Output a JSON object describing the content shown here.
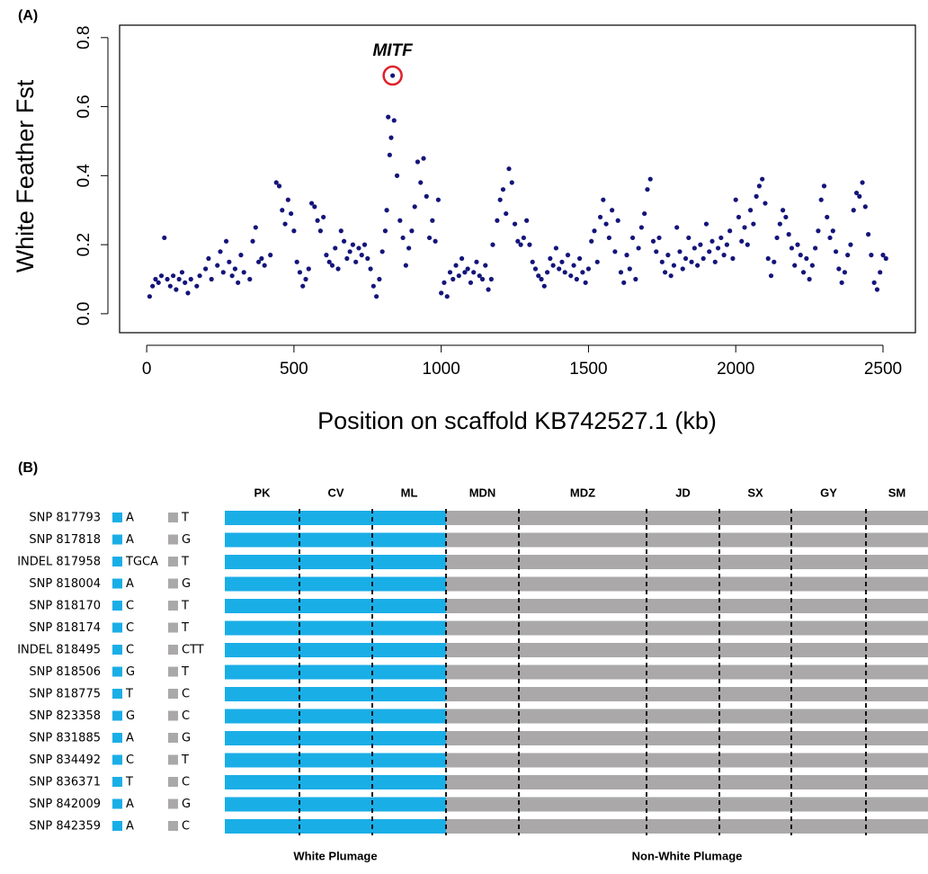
{
  "chart_data": {
    "type": "scatter",
    "panel_label": "(A)",
    "ylabel": "White Feather Fst",
    "xlabel": "Position on scaffold KB742527.1 (kb)",
    "color": "#14147a",
    "annotation": {
      "text": "MITF",
      "x": 835,
      "y": 0.69,
      "color": "#e0202a"
    },
    "xlim": [
      -92,
      2610
    ],
    "ylim": [
      -0.055,
      0.836
    ],
    "xticks": [
      0,
      500,
      1000,
      1500,
      2000,
      2500
    ],
    "yticks": [
      {
        "value": 0,
        "label": "0.0"
      },
      0.2,
      0.4,
      0.6,
      0.8
    ],
    "x": [
      10,
      20,
      30,
      40,
      50,
      60,
      70,
      80,
      90,
      100,
      110,
      120,
      130,
      140,
      150,
      170,
      180,
      200,
      210,
      220,
      240,
      250,
      260,
      270,
      280,
      290,
      300,
      310,
      320,
      330,
      350,
      360,
      370,
      380,
      390,
      400,
      420,
      440,
      450,
      460,
      470,
      480,
      490,
      500,
      510,
      520,
      530,
      540,
      550,
      560,
      570,
      580,
      590,
      600,
      610,
      620,
      630,
      640,
      650,
      660,
      670,
      680,
      690,
      700,
      710,
      720,
      730,
      740,
      750,
      760,
      770,
      780,
      790,
      800,
      810,
      815,
      820,
      825,
      830,
      835,
      840,
      850,
      860,
      870,
      880,
      890,
      900,
      910,
      920,
      930,
      940,
      950,
      960,
      970,
      980,
      990,
      1000,
      1010,
      1020,
      1030,
      1040,
      1050,
      1060,
      1070,
      1080,
      1090,
      1100,
      1110,
      1120,
      1130,
      1140,
      1150,
      1160,
      1170,
      1175,
      1190,
      1200,
      1210,
      1220,
      1230,
      1240,
      1250,
      1260,
      1270,
      1280,
      1290,
      1300,
      1310,
      1320,
      1330,
      1340,
      1350,
      1360,
      1370,
      1380,
      1390,
      1400,
      1410,
      1420,
      1430,
      1440,
      1450,
      1460,
      1470,
      1480,
      1490,
      1500,
      1510,
      1520,
      1530,
      1540,
      1550,
      1560,
      1570,
      1580,
      1590,
      1600,
      1610,
      1620,
      1630,
      1640,
      1650,
      1660,
      1670,
      1680,
      1690,
      1700,
      1710,
      1720,
      1730,
      1740,
      1750,
      1760,
      1770,
      1780,
      1790,
      1800,
      1810,
      1820,
      1830,
      1840,
      1850,
      1860,
      1870,
      1880,
      1890,
      1900,
      1910,
      1920,
      1930,
      1940,
      1950,
      1960,
      1970,
      1980,
      1990,
      2000,
      2010,
      2020,
      2030,
      2040,
      2050,
      2060,
      2070,
      2080,
      2090,
      2100,
      2110,
      2120,
      2130,
      2140,
      2150,
      2160,
      2170,
      2180,
      2190,
      2200,
      2210,
      2220,
      2230,
      2240,
      2250,
      2260,
      2270,
      2280,
      2290,
      2300,
      2310,
      2320,
      2330,
      2340,
      2350,
      2360,
      2370,
      2380,
      2390,
      2400,
      2410,
      2420,
      2430,
      2440,
      2450,
      2460,
      2470,
      2480,
      2490,
      2500,
      2510
    ],
    "y": [
      0.05,
      0.08,
      0.1,
      0.09,
      0.11,
      0.22,
      0.1,
      0.08,
      0.11,
      0.07,
      0.1,
      0.12,
      0.09,
      0.06,
      0.1,
      0.08,
      0.11,
      0.13,
      0.16,
      0.1,
      0.14,
      0.18,
      0.12,
      0.21,
      0.15,
      0.11,
      0.13,
      0.09,
      0.17,
      0.12,
      0.1,
      0.21,
      0.25,
      0.15,
      0.16,
      0.14,
      0.17,
      0.38,
      0.37,
      0.3,
      0.26,
      0.33,
      0.29,
      0.24,
      0.15,
      0.12,
      0.08,
      0.1,
      0.13,
      0.32,
      0.31,
      0.27,
      0.24,
      0.28,
      0.17,
      0.15,
      0.14,
      0.19,
      0.13,
      0.24,
      0.21,
      0.16,
      0.18,
      0.2,
      0.15,
      0.19,
      0.17,
      0.2,
      0.16,
      0.13,
      0.08,
      0.05,
      0.1,
      0.18,
      0.24,
      0.3,
      0.57,
      0.46,
      0.51,
      0.69,
      0.56,
      0.4,
      0.27,
      0.22,
      0.14,
      0.19,
      0.24,
      0.31,
      0.44,
      0.38,
      0.45,
      0.34,
      0.22,
      0.27,
      0.21,
      0.33,
      0.06,
      0.09,
      0.05,
      0.12,
      0.1,
      0.14,
      0.11,
      0.16,
      0.12,
      0.13,
      0.09,
      0.12,
      0.15,
      0.11,
      0.1,
      0.14,
      0.07,
      0.1,
      0.2,
      0.27,
      0.33,
      0.36,
      0.29,
      0.42,
      0.38,
      0.26,
      0.21,
      0.2,
      0.22,
      0.27,
      0.2,
      0.15,
      0.13,
      0.11,
      0.1,
      0.08,
      0.12,
      0.16,
      0.14,
      0.19,
      0.13,
      0.15,
      0.12,
      0.17,
      0.11,
      0.14,
      0.1,
      0.16,
      0.12,
      0.09,
      0.13,
      0.21,
      0.24,
      0.15,
      0.28,
      0.33,
      0.26,
      0.22,
      0.3,
      0.18,
      0.27,
      0.12,
      0.09,
      0.17,
      0.13,
      0.22,
      0.1,
      0.19,
      0.25,
      0.29,
      0.36,
      0.39,
      0.21,
      0.18,
      0.22,
      0.15,
      0.12,
      0.17,
      0.11,
      0.14,
      0.25,
      0.18,
      0.13,
      0.16,
      0.22,
      0.15,
      0.19,
      0.14,
      0.2,
      0.16,
      0.26,
      0.18,
      0.21,
      0.15,
      0.19,
      0.22,
      0.17,
      0.2,
      0.24,
      0.16,
      0.33,
      0.28,
      0.21,
      0.25,
      0.2,
      0.3,
      0.26,
      0.34,
      0.37,
      0.39,
      0.32,
      0.16,
      0.11,
      0.15,
      0.22,
      0.26,
      0.3,
      0.28,
      0.23,
      0.19,
      0.14,
      0.2,
      0.17,
      0.12,
      0.16,
      0.1,
      0.14,
      0.19,
      0.24,
      0.33,
      0.37,
      0.28,
      0.22,
      0.24,
      0.18,
      0.13,
      0.09,
      0.12,
      0.17,
      0.2,
      0.3,
      0.35,
      0.34,
      0.38,
      0.31,
      0.23,
      0.17,
      0.09,
      0.07,
      0.12,
      0.17,
      0.16
    ]
  },
  "panel_b": {
    "label": "(B)",
    "groups": [
      {
        "name": "White Plumage",
        "color": "#1aaee6",
        "columns": [
          "PK",
          "CV",
          "ML"
        ]
      },
      {
        "name": "Non-White Plumage",
        "color": "#aaa8a8",
        "columns": [
          "MDN",
          "MDZ",
          "JD",
          "SX",
          "GY",
          "SM"
        ]
      }
    ],
    "rows": [
      {
        "name": "SNP 817793",
        "allele_a": "A",
        "allele_b": "T"
      },
      {
        "name": "SNP 817818",
        "allele_a": "A",
        "allele_b": "G"
      },
      {
        "name": "INDEL 817958",
        "allele_a": "TGCA",
        "allele_b": "T"
      },
      {
        "name": "SNP 818004",
        "allele_a": "A",
        "allele_b": "G"
      },
      {
        "name": "SNP 818170",
        "allele_a": "C",
        "allele_b": "T"
      },
      {
        "name": "SNP 818174",
        "allele_a": "C",
        "allele_b": "T"
      },
      {
        "name": "INDEL 818495",
        "allele_a": "C",
        "allele_b": "CTT"
      },
      {
        "name": "SNP 818506",
        "allele_a": "G",
        "allele_b": "T"
      },
      {
        "name": "SNP 818775",
        "allele_a": "T",
        "allele_b": "C"
      },
      {
        "name": "SNP 823358",
        "allele_a": "G",
        "allele_b": "C"
      },
      {
        "name": "SNP 831885",
        "allele_a": "A",
        "allele_b": "G"
      },
      {
        "name": "SNP 834492",
        "allele_a": "C",
        "allele_b": "T"
      },
      {
        "name": "SNP 836371",
        "allele_a": "T",
        "allele_b": "C"
      },
      {
        "name": "SNP 842009",
        "allele_a": "A",
        "allele_b": "G"
      },
      {
        "name": "SNP 842359",
        "allele_a": "A",
        "allele_b": "C"
      }
    ]
  }
}
